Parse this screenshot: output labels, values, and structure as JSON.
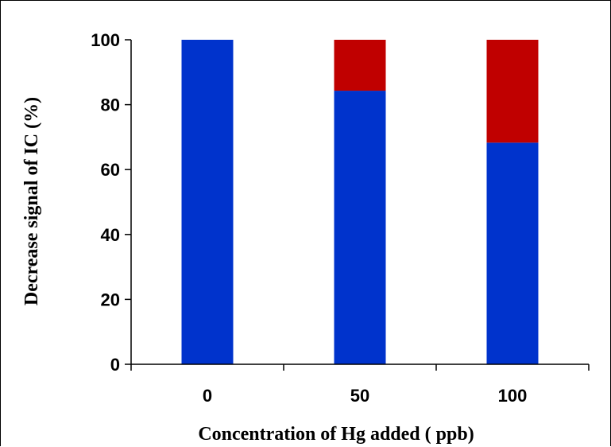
{
  "chart_data": {
    "type": "bar",
    "stacked": true,
    "title": "",
    "xlabel": "Concentration of Hg added ( ppb)",
    "ylabel": "Decrease signal of IC (%)",
    "categories": [
      "0",
      "50",
      "100"
    ],
    "series": [
      {
        "values": [
          100,
          84.3,
          68.3
        ],
        "color": "#0033cc"
      },
      {
        "values": [
          0,
          15.7,
          31.7
        ],
        "color": "#c00000"
      }
    ],
    "ylim": [
      0,
      100
    ],
    "yticks": [
      0,
      20,
      40,
      60,
      80,
      100
    ],
    "grid": false,
    "legend": "none"
  }
}
